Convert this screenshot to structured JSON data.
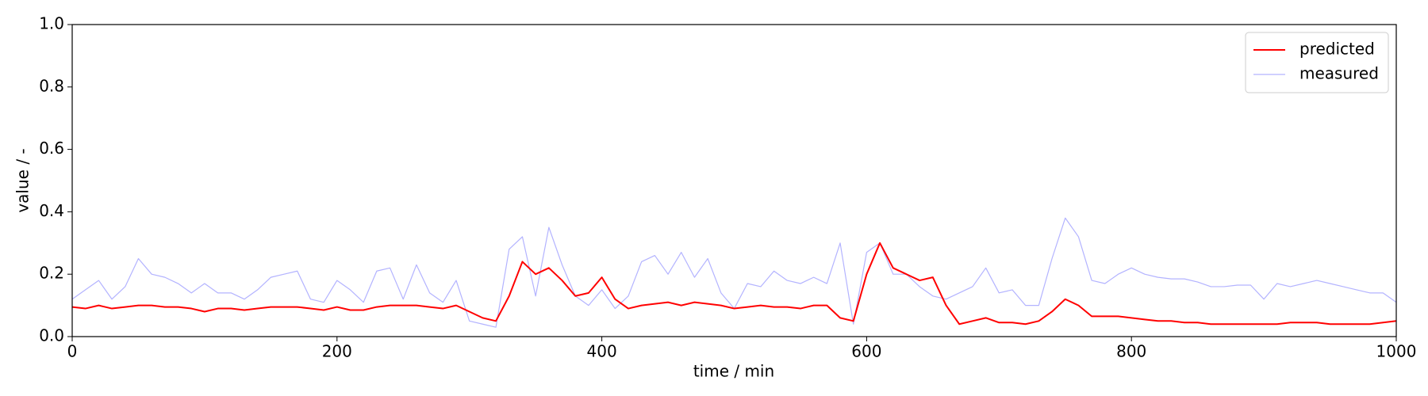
{
  "chart_data": {
    "type": "line",
    "xlabel": "time / min",
    "ylabel": "value / -",
    "x": [
      0,
      10,
      20,
      30,
      40,
      50,
      60,
      70,
      80,
      90,
      100,
      110,
      120,
      130,
      140,
      150,
      160,
      170,
      180,
      190,
      200,
      210,
      220,
      230,
      240,
      250,
      260,
      270,
      280,
      290,
      300,
      310,
      320,
      330,
      340,
      350,
      360,
      370,
      380,
      390,
      400,
      410,
      420,
      430,
      440,
      450,
      460,
      470,
      480,
      490,
      500,
      510,
      520,
      530,
      540,
      550,
      560,
      570,
      580,
      590,
      600,
      610,
      620,
      630,
      640,
      650,
      660,
      670,
      680,
      690,
      700,
      710,
      720,
      730,
      740,
      750,
      760,
      770,
      780,
      790,
      800,
      810,
      820,
      830,
      840,
      850,
      860,
      870,
      880,
      890,
      900,
      910,
      920,
      930,
      940,
      950,
      960,
      970,
      980,
      990,
      1000
    ],
    "series": [
      {
        "name": "predicted",
        "color": "#ff0000",
        "width": 2,
        "values": [
          0.095,
          0.09,
          0.1,
          0.09,
          0.095,
          0.1,
          0.1,
          0.095,
          0.095,
          0.09,
          0.08,
          0.09,
          0.09,
          0.085,
          0.09,
          0.095,
          0.095,
          0.095,
          0.09,
          0.085,
          0.095,
          0.085,
          0.085,
          0.095,
          0.1,
          0.1,
          0.1,
          0.095,
          0.09,
          0.1,
          0.08,
          0.06,
          0.05,
          0.13,
          0.24,
          0.2,
          0.22,
          0.18,
          0.13,
          0.14,
          0.19,
          0.12,
          0.09,
          0.1,
          0.105,
          0.11,
          0.1,
          0.11,
          0.105,
          0.1,
          0.09,
          0.095,
          0.1,
          0.095,
          0.095,
          0.09,
          0.1,
          0.1,
          0.06,
          0.05,
          0.2,
          0.3,
          0.22,
          0.2,
          0.18,
          0.19,
          0.1,
          0.04,
          0.05,
          0.06,
          0.045,
          0.045,
          0.04,
          0.05,
          0.08,
          0.12,
          0.1,
          0.065,
          0.065,
          0.065,
          0.06,
          0.055,
          0.05,
          0.05,
          0.045,
          0.045,
          0.04,
          0.04,
          0.04,
          0.04,
          0.04,
          0.04,
          0.045,
          0.045,
          0.045,
          0.04,
          0.04,
          0.04,
          0.04,
          0.045,
          0.05
        ]
      },
      {
        "name": "measured",
        "color": "#b3b3ff",
        "width": 1.2,
        "values": [
          0.12,
          0.15,
          0.18,
          0.12,
          0.16,
          0.25,
          0.2,
          0.19,
          0.17,
          0.14,
          0.17,
          0.14,
          0.14,
          0.12,
          0.15,
          0.19,
          0.2,
          0.21,
          0.12,
          0.11,
          0.18,
          0.15,
          0.11,
          0.21,
          0.22,
          0.12,
          0.23,
          0.14,
          0.11,
          0.18,
          0.05,
          0.04,
          0.03,
          0.28,
          0.32,
          0.13,
          0.35,
          0.23,
          0.13,
          0.1,
          0.15,
          0.09,
          0.13,
          0.24,
          0.26,
          0.2,
          0.27,
          0.19,
          0.25,
          0.14,
          0.09,
          0.17,
          0.16,
          0.21,
          0.18,
          0.17,
          0.19,
          0.17,
          0.3,
          0.04,
          0.27,
          0.3,
          0.2,
          0.2,
          0.16,
          0.13,
          0.12,
          0.14,
          0.16,
          0.22,
          0.14,
          0.15,
          0.1,
          0.1,
          0.25,
          0.38,
          0.32,
          0.18,
          0.17,
          0.2,
          0.22,
          0.2,
          0.19,
          0.185,
          0.185,
          0.175,
          0.16,
          0.16,
          0.165,
          0.165,
          0.12,
          0.17,
          0.16,
          0.17,
          0.18,
          0.17,
          0.16,
          0.15,
          0.14,
          0.14,
          0.11
        ]
      }
    ],
    "xlim": [
      0,
      1000
    ],
    "ylim": [
      0,
      1
    ],
    "xticks": [
      0,
      200,
      400,
      600,
      800,
      1000
    ],
    "yticks": [
      {
        "value": 0,
        "label": "0.0"
      },
      0.2,
      0.4,
      0.6,
      0.8,
      {
        "value": 1,
        "label": "1.0"
      }
    ],
    "legend": "upper right"
  }
}
